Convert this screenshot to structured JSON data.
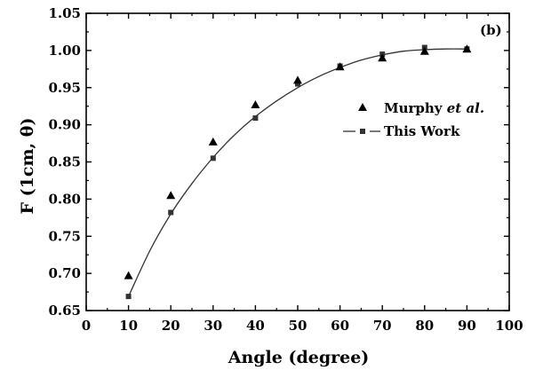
{
  "chart_data": {
    "type": "scatter",
    "panel_label": "(b)",
    "xlabel": "Angle (degree)",
    "ylabel": "F (1cm, θ)",
    "xlim": [
      0,
      100
    ],
    "ylim": [
      0.65,
      1.05
    ],
    "x_ticks": [
      0,
      10,
      20,
      30,
      40,
      50,
      60,
      70,
      80,
      90,
      100
    ],
    "y_ticks": [
      0.65,
      0.7,
      0.75,
      0.8,
      0.85,
      0.9,
      0.95,
      1.0,
      1.05
    ],
    "x_tick_labels": [
      "0",
      "10",
      "20",
      "30",
      "40",
      "50",
      "60",
      "70",
      "80",
      "90",
      "100"
    ],
    "y_tick_labels": [
      "0.65",
      "0.70",
      "0.75",
      "0.80",
      "0.85",
      "0.90",
      "0.95",
      "1.00",
      "1.05"
    ],
    "grid": false,
    "legend_position": "right",
    "series": [
      {
        "legend_prefix": "Murphy ",
        "legend_italic": "et al.",
        "marker": "triangle",
        "line": false,
        "x": [
          10,
          20,
          30,
          40,
          50,
          60,
          70,
          80,
          90
        ],
        "y": [
          0.697,
          0.805,
          0.877,
          0.927,
          0.96,
          0.978,
          0.99,
          0.999,
          1.002
        ]
      },
      {
        "name": "This Work",
        "marker": "square",
        "line": true,
        "x": [
          10,
          20,
          30,
          40,
          50,
          60,
          70,
          80,
          90
        ],
        "y": [
          0.669,
          0.782,
          0.855,
          0.909,
          0.955,
          0.979,
          0.995,
          1.004,
          1.002
        ]
      }
    ],
    "fit_curve": {
      "x": [
        10,
        15,
        20,
        25,
        30,
        35,
        40,
        45,
        50,
        55,
        60,
        65,
        70,
        75,
        80,
        85,
        90
      ],
      "y": [
        0.669,
        0.73,
        0.78,
        0.821,
        0.856,
        0.886,
        0.911,
        0.932,
        0.95,
        0.965,
        0.977,
        0.987,
        0.994,
        0.999,
        1.001,
        1.002,
        1.002
      ]
    },
    "colors": {
      "axis": "#000000",
      "marker_triangle": "#000000",
      "marker_square": "#333333",
      "line": "#333333"
    }
  }
}
